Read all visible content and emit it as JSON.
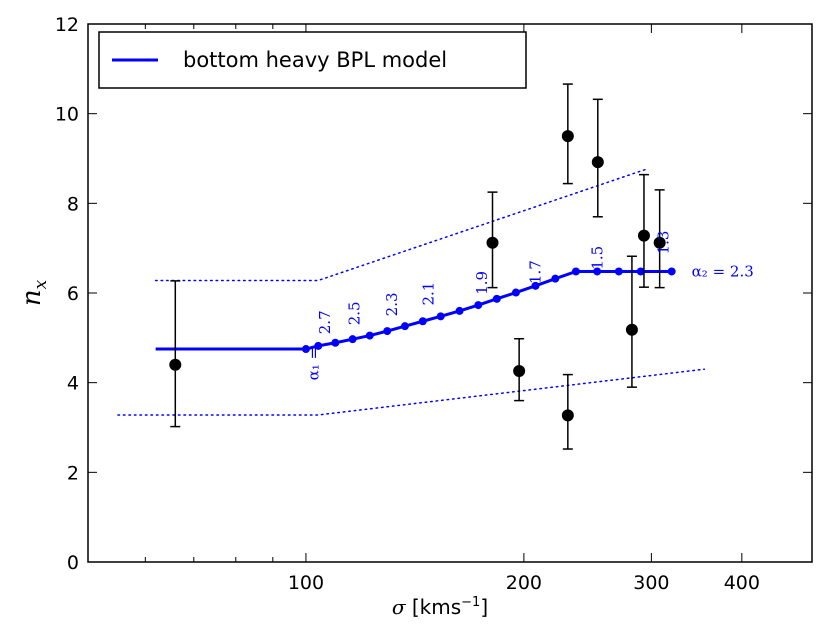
{
  "chart_data": {
    "type": "scatter",
    "title": "",
    "xscale": "log",
    "xlabel_symbol": "σ",
    "xlabel_unit": "[kms",
    "xlabel_exp": "−1",
    "xlabel_close": "]",
    "ylabel_base": "n",
    "ylabel_sub": "x",
    "xlim": [
      50,
      500
    ],
    "ylim": [
      0,
      12
    ],
    "xticks": [
      100,
      200,
      300,
      400
    ],
    "xtick_labels": [
      "100",
      "200",
      "300",
      "400"
    ],
    "yticks": [
      0,
      2,
      4,
      6,
      8,
      10,
      12
    ],
    "ytick_labels": [
      "0",
      "2",
      "4",
      "6",
      "8",
      "10",
      "12"
    ],
    "legend": {
      "label": "bottom heavy BPL model",
      "position": "top-left",
      "color": "#0000ff"
    },
    "observations": {
      "name": "data",
      "color": "#000000",
      "points": [
        {
          "x": 66,
          "y": 4.4,
          "err_low": 3.02,
          "err_high": 6.27
        },
        {
          "x": 181,
          "y": 7.12,
          "err_low": 6.12,
          "err_high": 8.25
        },
        {
          "x": 197,
          "y": 4.26,
          "err_low": 3.6,
          "err_high": 4.98
        },
        {
          "x": 230,
          "y": 9.5,
          "err_low": 8.44,
          "err_high": 10.66
        },
        {
          "x": 230,
          "y": 3.27,
          "err_low": 2.52,
          "err_high": 4.18
        },
        {
          "x": 253,
          "y": 8.92,
          "err_low": 7.7,
          "err_high": 10.32
        },
        {
          "x": 282,
          "y": 5.18,
          "err_low": 3.9,
          "err_high": 6.82
        },
        {
          "x": 293,
          "y": 7.28,
          "err_low": 6.13,
          "err_high": 8.64
        },
        {
          "x": 308,
          "y": 7.12,
          "err_low": 6.12,
          "err_high": 8.3
        }
      ]
    },
    "model": {
      "name": "bottom heavy BPL model",
      "color": "#0000ff",
      "flat_segment": {
        "x": [
          62,
          100
        ],
        "y": 4.75
      },
      "x": [
        100,
        104,
        109.8,
        116,
        122.5,
        129.5,
        137,
        145,
        153.5,
        163,
        173,
        183.5,
        195,
        207.5,
        221,
        236,
        252.5,
        270.5,
        290,
        310,
        320
      ],
      "y": [
        4.75,
        4.8,
        4.88,
        4.96,
        5.05,
        5.15,
        5.26,
        5.37,
        5.48,
        5.6,
        5.72,
        5.86,
        6.0,
        6.15,
        6.32,
        6.48,
        6.48,
        6.48,
        6.48,
        6.48,
        6.48
      ]
    },
    "model_markers": {
      "x": [
        100,
        104,
        109.8,
        116,
        122.5,
        129.5,
        137,
        145,
        153.5,
        163,
        173,
        183.5,
        195,
        207.5,
        221,
        236,
        252.5,
        270.5,
        290,
        320
      ],
      "y": [
        4.75,
        4.82,
        4.89,
        4.97,
        5.05,
        5.15,
        5.26,
        5.37,
        5.48,
        5.6,
        5.73,
        5.87,
        6.01,
        6.16,
        6.32,
        6.48,
        6.48,
        6.48,
        6.48,
        6.48
      ]
    },
    "upper_band": {
      "x": [
        62,
        104,
        295
      ],
      "y": [
        6.28,
        6.28,
        8.76
      ]
    },
    "lower_band": {
      "x": [
        55,
        104,
        355
      ],
      "y": [
        3.28,
        3.28,
        4.3
      ]
    },
    "alpha1_label": "α₁ =",
    "alpha2_label": "α₂ = 2.3",
    "alpha_annotations": [
      {
        "text": "2.7",
        "x": 108,
        "y": 5.08
      },
      {
        "text": "2.5",
        "x": 118.5,
        "y": 5.28
      },
      {
        "text": "2.3",
        "x": 133.5,
        "y": 5.48
      },
      {
        "text": "2.1",
        "x": 150,
        "y": 5.72
      },
      {
        "text": "1.9",
        "x": 178,
        "y": 5.96
      },
      {
        "text": "1.7",
        "x": 211,
        "y": 6.2
      },
      {
        "text": "1.5",
        "x": 257,
        "y": 6.52
      },
      {
        "text": "1.3",
        "x": 317,
        "y": 6.86
      }
    ]
  }
}
